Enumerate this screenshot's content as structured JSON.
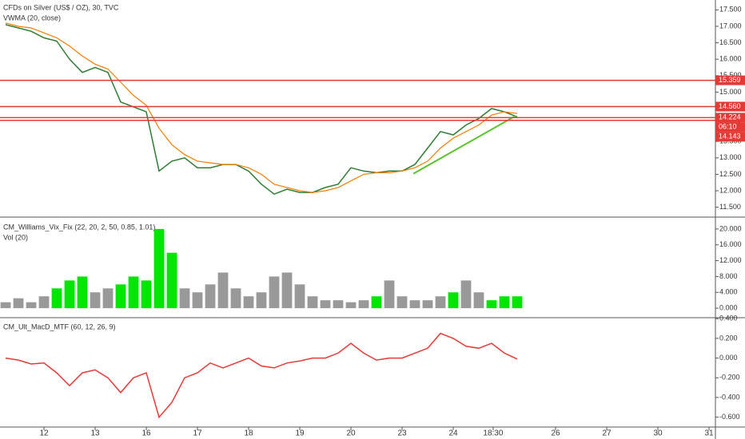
{
  "chart_data": [
    {
      "type": "line",
      "x": [
        -0.75,
        -0.5,
        -0.25,
        0,
        0.25,
        0.5,
        0.75,
        1,
        1.25,
        1.5,
        1.75,
        2,
        2.25,
        2.5,
        2.75,
        3,
        3.25,
        3.5,
        3.75,
        4,
        4.25,
        4.5,
        4.75,
        5,
        5.25,
        5.5,
        5.75,
        6,
        6.25,
        6.5,
        6.75,
        7,
        7.25,
        7.5,
        7.75,
        8,
        8.25,
        8.5,
        8.75,
        9,
        9.25
      ],
      "series": [
        {
          "name": "CFDs on Silver (US$ / OZ), 30, TVC",
          "color": "#2e7d32",
          "values": [
            17.05,
            16.95,
            16.85,
            16.65,
            16.55,
            16.0,
            15.6,
            15.75,
            15.6,
            14.7,
            14.55,
            14.4,
            12.6,
            12.9,
            13.0,
            12.7,
            12.7,
            12.8,
            12.8,
            12.6,
            12.2,
            11.9,
            12.05,
            11.95,
            11.95,
            12.1,
            12.2,
            12.7,
            12.6,
            12.55,
            12.6,
            12.6,
            12.8,
            13.3,
            13.8,
            13.7,
            14.0,
            14.2,
            14.5,
            14.4,
            14.25
          ]
        },
        {
          "name": "VWMA (20, close)",
          "color": "#f57c00",
          "values": [
            17.1,
            17.0,
            16.95,
            16.8,
            16.65,
            16.4,
            16.1,
            15.85,
            15.7,
            15.3,
            14.9,
            14.6,
            13.9,
            13.4,
            13.1,
            12.9,
            12.85,
            12.8,
            12.8,
            12.7,
            12.5,
            12.2,
            12.1,
            12.0,
            11.95,
            12.0,
            12.1,
            12.3,
            12.5,
            12.55,
            12.55,
            12.6,
            12.7,
            12.9,
            13.3,
            13.6,
            13.8,
            14.0,
            14.3,
            14.4,
            14.35
          ]
        }
      ],
      "ylim": [
        11.2,
        17.8
      ],
      "yticks": [
        {
          "value": 11.5,
          "label": "11.500"
        },
        {
          "value": 12,
          "label": "12.000"
        },
        {
          "value": 12.5,
          "label": "12.500"
        },
        {
          "value": 13,
          "label": "13.000"
        },
        {
          "value": 13.5,
          "label": "13.500"
        },
        {
          "value": 14,
          "label": "14.000"
        },
        {
          "value": 14.5,
          "label": "14.500"
        },
        {
          "value": 15,
          "label": "15.000"
        },
        {
          "value": 15.5,
          "label": "15.500"
        },
        {
          "value": 16,
          "label": "16.000"
        },
        {
          "value": 16.5,
          "label": "16.500"
        },
        {
          "value": 17,
          "label": "17.000"
        },
        {
          "value": 17.5,
          "label": "17.500"
        }
      ],
      "levels": [
        15.359,
        {
          "value": 14.56,
          "label": "14.560"
        },
        14.224,
        14.143
      ],
      "level_color": "#e53935",
      "countdown": "06:10",
      "trendline": {
        "x": [
          7.22,
          9.22
        ],
        "values": [
          12.52,
          14.28
        ],
        "color": "#5ac32a"
      }
    },
    {
      "type": "bar",
      "title": "CM_Williams_Vix_Fix (22, 20, 2, 50, 0.85, 1.01)",
      "subtitle": "Vol (20)",
      "x": [
        -0.75,
        -0.5,
        -0.25,
        0,
        0.25,
        0.5,
        0.75,
        1,
        1.25,
        1.5,
        1.75,
        2,
        2.25,
        2.5,
        2.75,
        3,
        3.25,
        3.5,
        3.75,
        4,
        4.25,
        4.5,
        4.75,
        5,
        5.25,
        5.5,
        5.75,
        6,
        6.25,
        6.5,
        6.75,
        7,
        7.25,
        7.5,
        7.75,
        8,
        8.25,
        8.5,
        8.75,
        9,
        9.25
      ],
      "values": [
        1.5,
        2.5,
        1.5,
        3,
        5,
        7,
        8,
        4,
        5,
        6,
        8,
        7,
        20,
        14,
        5,
        4,
        6,
        9,
        5,
        3,
        4,
        8,
        9,
        6,
        3,
        2,
        2,
        1.5,
        2,
        3,
        7,
        3,
        2,
        2,
        3,
        4,
        7,
        4,
        2,
        3,
        3
      ],
      "colors": [
        "#999999",
        "#999999",
        "#999999",
        "#999999",
        "#00e600",
        "#00e600",
        "#00e600",
        "#999999",
        "#999999",
        "#00e600",
        "#00e600",
        "#00e600",
        "#00e600",
        "#00e600",
        "#999999",
        "#999999",
        "#999999",
        "#999999",
        "#999999",
        "#999999",
        "#999999",
        "#999999",
        "#999999",
        "#999999",
        "#999999",
        "#999999",
        "#999999",
        "#999999",
        "#999999",
        "#00e600",
        "#999999",
        "#999999",
        "#999999",
        "#999999",
        "#999999",
        "#00e600",
        "#999999",
        "#999999",
        "#00e600",
        "#00e600",
        "#00e600"
      ],
      "ylim": [
        -2.4,
        23
      ],
      "yticks": [
        {
          "value": 0,
          "label": "0.000"
        },
        {
          "value": 4,
          "label": "4.000"
        },
        {
          "value": 8,
          "label": "8.000"
        },
        {
          "value": 12,
          "label": "12.000"
        },
        {
          "value": 16,
          "label": "16.000"
        },
        {
          "value": 20,
          "label": "20.000"
        }
      ]
    },
    {
      "type": "line",
      "title": "CM_Ult_MacD_MTF (60, 12, 26, 9)",
      "x": [
        -0.75,
        -0.5,
        -0.25,
        0,
        0.25,
        0.5,
        0.75,
        1,
        1.25,
        1.5,
        1.75,
        2,
        2.25,
        2.5,
        2.75,
        3,
        3.25,
        3.5,
        3.75,
        4,
        4.25,
        4.5,
        4.75,
        5,
        5.25,
        5.5,
        5.75,
        6,
        6.25,
        6.5,
        6.75,
        7,
        7.25,
        7.5,
        7.75,
        8,
        8.25,
        8.5,
        8.75,
        9,
        9.25
      ],
      "series": [
        {
          "color": "#e53935",
          "values": [
            0.0,
            -0.02,
            -0.06,
            -0.05,
            -0.15,
            -0.28,
            -0.15,
            -0.12,
            -0.2,
            -0.35,
            -0.2,
            -0.15,
            -0.6,
            -0.45,
            -0.2,
            -0.15,
            -0.05,
            -0.1,
            -0.05,
            0.0,
            -0.08,
            -0.1,
            -0.05,
            -0.03,
            0.0,
            0.0,
            0.05,
            0.15,
            0.05,
            -0.02,
            0.0,
            0.0,
            0.05,
            0.1,
            0.25,
            0.2,
            0.12,
            0.1,
            0.15,
            0.05,
            -0.01
          ]
        }
      ],
      "ylim": [
        -0.7,
        0.41
      ],
      "yticks": [
        {
          "value": -0.6,
          "label": "-0.600"
        },
        {
          "value": -0.4,
          "label": "-0.400"
        },
        {
          "value": -0.2,
          "label": "-0.200"
        },
        {
          "value": 0,
          "label": "0.000"
        },
        {
          "value": 0.2,
          "label": "0.200"
        },
        {
          "value": 0.4,
          "label": "0.400"
        }
      ],
      "xlim": [
        -0.86,
        13.125
      ],
      "xticks": [
        {
          "value": 0,
          "label": "12"
        },
        {
          "value": 1,
          "label": "13"
        },
        {
          "value": 2,
          "label": "16"
        },
        {
          "value": 3,
          "label": "17"
        },
        {
          "value": 4,
          "label": "18"
        },
        {
          "value": 5,
          "label": "19"
        },
        {
          "value": 6,
          "label": "20"
        },
        {
          "value": 7,
          "label": "23"
        },
        {
          "value": 8,
          "label": "24"
        },
        {
          "value": 8.78,
          "label": "18:30"
        },
        {
          "value": 10,
          "label": "26"
        },
        {
          "value": 11,
          "label": "27"
        },
        {
          "value": 12,
          "label": "30"
        },
        {
          "value": 13,
          "label": "31"
        }
      ]
    }
  ]
}
